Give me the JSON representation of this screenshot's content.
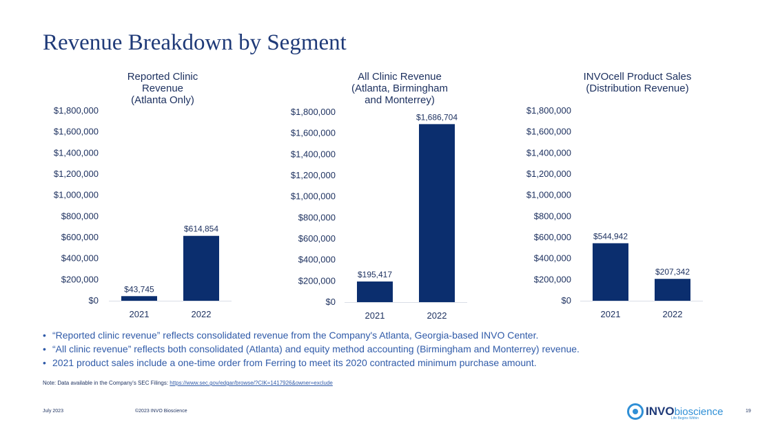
{
  "slide": {
    "title": "Revenue Breakdown by Segment",
    "bullets": [
      "“Reported clinic revenue” reflects consolidated revenue from the Company's Atlanta, Georgia-based INVO Center.",
      "“All clinic revenue” reflects both consolidated (Atlanta) and equity method accounting (Birmingham and Monterrey) revenue.",
      "2021 product sales include a one-time order from Ferring to meet its 2020 contracted minimum purchase amount."
    ],
    "note_prefix": "Note: Data available in the Company's SEC Filings: ",
    "note_link": "https://www.sec.gov/edgar/browse/?CIK=1417926&owner=exclude",
    "footer_date": "July 2023",
    "footer_copyright": "©2023 INVO Bioscience",
    "page_number": "19",
    "logo": {
      "word": "INVO",
      "word2": "bioscience",
      "tagline": "Life Begins Within"
    },
    "colors": {
      "bar": "#0b2e6e",
      "title": "#1f3a78",
      "text": "#1b2f5e",
      "accent": "#2f5aa8",
      "logo_accent": "#2f8fd6"
    }
  },
  "chart_data": [
    {
      "type": "bar",
      "title_lines": [
        "Reported Clinic",
        "Revenue",
        "(Atlanta Only)"
      ],
      "categories": [
        "2021",
        "2022"
      ],
      "values": [
        43745,
        614854
      ],
      "data_labels": [
        "$43,745",
        "$614,854"
      ],
      "ylim": [
        0,
        1800000
      ],
      "y_ticks": [
        "$0",
        "$200,000",
        "$400,000",
        "$600,000",
        "$800,000",
        "$1,000,000",
        "$1,200,000",
        "$1,400,000",
        "$1,600,000",
        "$1,800,000"
      ],
      "grid": false
    },
    {
      "type": "bar",
      "title_lines": [
        "All Clinic Revenue",
        "(Atlanta, Birmingham",
        "and Monterrey)"
      ],
      "categories": [
        "2021",
        "2022"
      ],
      "values": [
        195417,
        1686704
      ],
      "data_labels": [
        "$195,417",
        "$1,686,704"
      ],
      "ylim": [
        0,
        1800000
      ],
      "y_ticks": [
        "$0",
        "$200,000",
        "$400,000",
        "$600,000",
        "$800,000",
        "$1,000,000",
        "$1,200,000",
        "$1,400,000",
        "$1,600,000",
        "$1,800,000"
      ],
      "grid": false
    },
    {
      "type": "bar",
      "title_lines": [
        "INVOcell Product Sales",
        "(Distribution Revenue)"
      ],
      "categories": [
        "2021",
        "2022"
      ],
      "values": [
        544942,
        207342
      ],
      "data_labels": [
        "$544,942",
        "$207,342"
      ],
      "ylim": [
        0,
        1800000
      ],
      "y_ticks": [
        "$0",
        "$200,000",
        "$400,000",
        "$600,000",
        "$800,000",
        "$1,000,000",
        "$1,200,000",
        "$1,400,000",
        "$1,600,000",
        "$1,800,000"
      ],
      "grid": false
    }
  ]
}
